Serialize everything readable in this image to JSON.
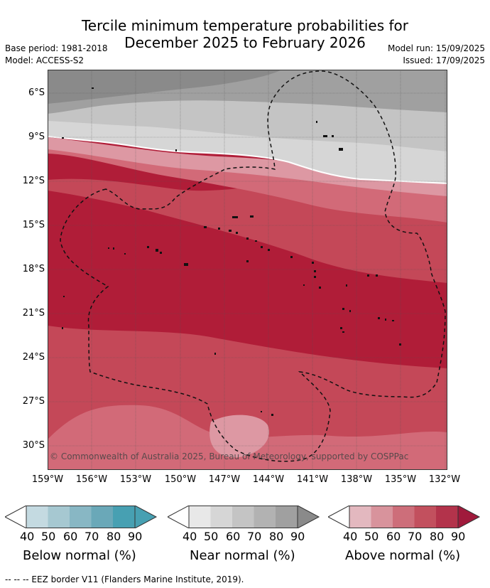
{
  "title_line1": "Tercile minimum temperature probabilities for",
  "title_line2": "December 2025 to February 2026",
  "meta": {
    "base_period": "Base period: 1981-2018",
    "model": "Model: ACCESS-S2",
    "model_run": "Model run: 15/09/2025",
    "issued": "Issued: 17/09/2025"
  },
  "map": {
    "copyright": "© Commonwealth of Australia 2025, Bureau of Meteorology, supported by COSPPac",
    "lat_labels": [
      "6°S",
      "9°S",
      "12°S",
      "15°S",
      "18°S",
      "21°S",
      "24°S",
      "27°S",
      "30°S"
    ],
    "lon_labels": [
      "159°W",
      "156°W",
      "153°W",
      "150°W",
      "147°W",
      "144°W",
      "141°W",
      "138°W",
      "135°W",
      "132°W"
    ]
  },
  "legend": {
    "below": {
      "title": "Below normal (%)",
      "ticks": [
        "40",
        "50",
        "60",
        "70",
        "80",
        "90"
      ],
      "colors": [
        "#c4dae1",
        "#a6c8d1",
        "#88b7c4",
        "#6aa8b8",
        "#47a0b2"
      ]
    },
    "near": {
      "title": "Near normal (%)",
      "ticks": [
        "40",
        "50",
        "60",
        "70",
        "80",
        "90"
      ],
      "colors": [
        "#e8e8e8",
        "#d6d6d6",
        "#c4c4c4",
        "#b2b2b2",
        "#a0a0a0"
      ]
    },
    "above": {
      "title": "Above normal (%)",
      "ticks": [
        "40",
        "50",
        "60",
        "70",
        "80",
        "90"
      ],
      "colors": [
        "#e3b8bf",
        "#d8939c",
        "#cd6e7a",
        "#c2505e",
        "#b3334b"
      ]
    }
  },
  "footer": "-- -- -- EEZ border V11 (Flanders Marine Institute, 2019)."
}
